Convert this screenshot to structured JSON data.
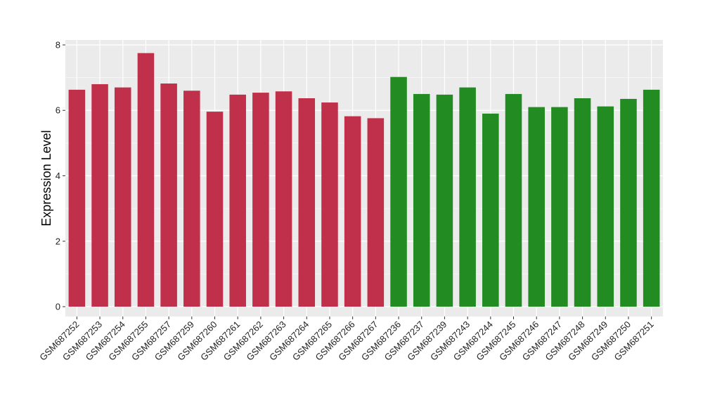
{
  "chart_data": {
    "type": "bar",
    "title": "",
    "xlabel": "",
    "ylabel": "Expression Level",
    "ylim": [
      -0.3,
      8.15
    ],
    "yticks": [
      0,
      2,
      4,
      6,
      8
    ],
    "grid": true,
    "legend": "none",
    "colors": {
      "group_a": "#C0304A",
      "group_b": "#228B22",
      "panel_bg": "#EBEBEB",
      "grid": "#FFFFFF"
    },
    "categories": [
      "GSM687252",
      "GSM687253",
      "GSM687254",
      "GSM687255",
      "GSM687257",
      "GSM687259",
      "GSM687260",
      "GSM687261",
      "GSM687262",
      "GSM687263",
      "GSM687264",
      "GSM687265",
      "GSM687266",
      "GSM687267",
      "GSM687236",
      "GSM687237",
      "GSM687239",
      "GSM687243",
      "GSM687244",
      "GSM687245",
      "GSM687246",
      "GSM687247",
      "GSM687248",
      "GSM687249",
      "GSM687250",
      "GSM687251"
    ],
    "values": [
      6.63,
      6.8,
      6.7,
      7.75,
      6.82,
      6.6,
      5.96,
      6.48,
      6.54,
      6.58,
      6.37,
      6.24,
      5.82,
      5.76,
      7.02,
      6.5,
      6.48,
      6.7,
      5.9,
      6.5,
      6.1,
      6.1,
      6.37,
      6.12,
      6.35,
      6.63
    ],
    "groups": [
      "a",
      "a",
      "a",
      "a",
      "a",
      "a",
      "a",
      "a",
      "a",
      "a",
      "a",
      "a",
      "a",
      "a",
      "b",
      "b",
      "b",
      "b",
      "b",
      "b",
      "b",
      "b",
      "b",
      "b",
      "b",
      "b"
    ]
  }
}
